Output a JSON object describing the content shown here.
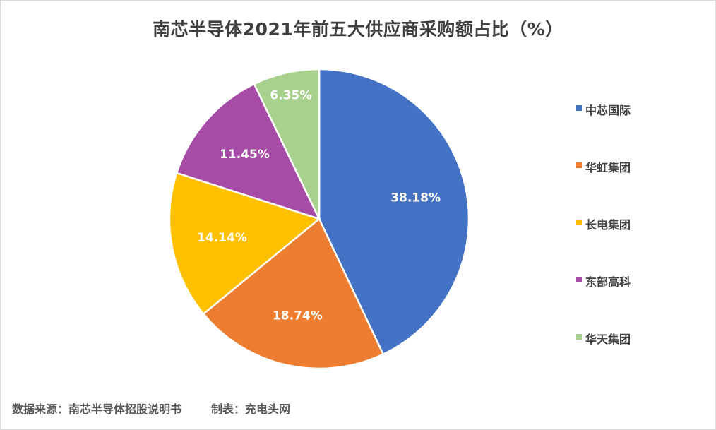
{
  "chart_data": {
    "type": "pie",
    "title": "南芯半导体2021年前五大供应商采购额占比（%）",
    "categories": [
      "中芯国际",
      "华虹集团",
      "长电集团",
      "东部高科",
      "华天集团"
    ],
    "values": [
      38.18,
      18.74,
      14.14,
      11.45,
      6.35
    ],
    "data_labels": [
      "38.18%",
      "18.74%",
      "14.14%",
      "11.45%",
      "6.35%"
    ],
    "colors": [
      "#4472C4",
      "#ED7D31",
      "#FFC000",
      "#A64CA6",
      "#A9D18E"
    ],
    "legend_position": "right"
  },
  "footer": {
    "source": "数据来源：南芯半导体招股说明书",
    "maker": "制表：充电头网"
  }
}
